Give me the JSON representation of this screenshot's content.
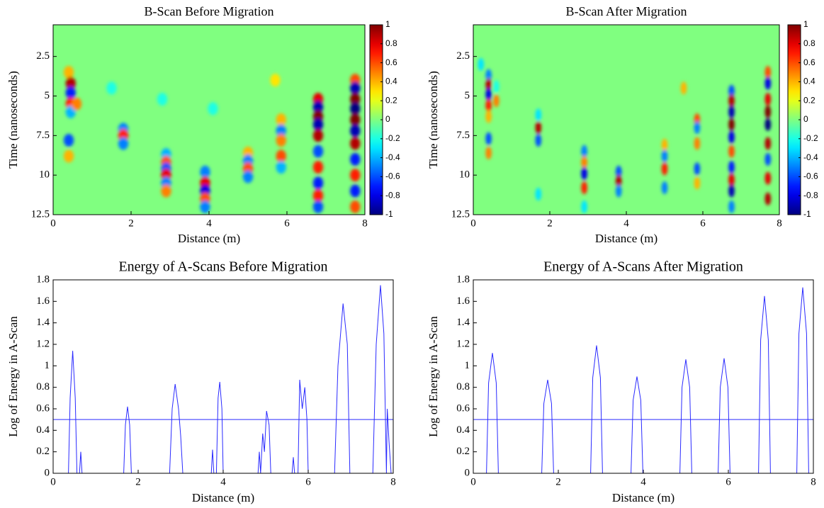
{
  "chart_data": [
    {
      "type": "heatmap",
      "title": "B-Scan Before Migration",
      "xlabel": "Distance (m)",
      "ylabel": "Time (nanoseconds)",
      "xlim": [
        0,
        8
      ],
      "xticks": [
        0,
        2,
        4,
        6,
        8
      ],
      "ylim": [
        0.5,
        12.5
      ],
      "yticks": [
        2.5,
        5,
        7.5,
        10,
        12.5
      ],
      "y_reversed": true,
      "colormap": "jet",
      "clim": [
        -1,
        1
      ],
      "cticks": [
        -1,
        -0.8,
        -0.6,
        -0.4,
        -0.2,
        0,
        0.2,
        0.4,
        0.6,
        0.8,
        1
      ],
      "x": [
        0.4,
        0.45,
        0.45,
        0.45,
        0.45,
        0.6,
        0.4,
        0.4,
        1.8,
        1.8,
        1.8,
        2.9,
        2.9,
        2.9,
        2.9,
        2.9,
        2.9,
        3.9,
        3.9,
        3.9,
        3.9,
        3.9,
        5.0,
        5.0,
        5.0,
        5.0,
        5.85,
        5.85,
        5.85,
        5.85,
        5.85,
        6.8,
        6.8,
        6.8,
        6.8,
        6.8,
        6.8,
        6.8,
        6.8,
        6.8,
        6.8,
        7.75,
        7.75,
        7.75,
        7.75,
        7.75,
        7.75,
        7.75,
        7.75,
        7.75,
        7.75,
        7.75,
        1.5,
        2.8,
        4.1,
        5.7
      ],
      "y": [
        3.5,
        4.2,
        4.8,
        5.5,
        6.0,
        5.5,
        7.8,
        8.8,
        7.1,
        7.5,
        8.0,
        8.7,
        9.2,
        9.6,
        10.0,
        10.5,
        11.0,
        9.8,
        10.5,
        11.0,
        11.5,
        12.0,
        8.6,
        9.1,
        9.6,
        10.1,
        6.5,
        7.2,
        7.8,
        8.8,
        9.5,
        5.2,
        5.7,
        6.3,
        6.8,
        7.5,
        8.5,
        9.5,
        10.5,
        11.3,
        12.0,
        4.0,
        4.5,
        5.2,
        5.8,
        6.5,
        7.2,
        8.0,
        9.0,
        10.0,
        11.0,
        12.0,
        4.5,
        5.2,
        5.8,
        4.0
      ],
      "values": [
        0.4,
        0.9,
        -0.7,
        0.7,
        -0.4,
        0.5,
        -0.6,
        0.4,
        -0.5,
        0.7,
        -0.5,
        -0.4,
        0.6,
        -0.6,
        0.8,
        -0.5,
        0.5,
        -0.5,
        0.8,
        -0.8,
        0.6,
        -0.5,
        0.4,
        -0.5,
        0.6,
        -0.5,
        0.4,
        -0.5,
        0.5,
        0.6,
        -0.4,
        0.8,
        -0.9,
        1,
        -0.9,
        0.9,
        -0.6,
        0.7,
        -0.7,
        0.7,
        -0.6,
        0.6,
        -0.9,
        1,
        -1,
        1,
        -0.9,
        0.9,
        -0.7,
        0.7,
        -0.7,
        0.6,
        -0.2,
        -0.2,
        -0.2,
        0.3
      ]
    },
    {
      "type": "heatmap",
      "title": "B-Scan After Migration",
      "xlabel": "Distance (m)",
      "ylabel": "Time (nanoseconds)",
      "xlim": [
        0,
        8
      ],
      "xticks": [
        0,
        2,
        4,
        6,
        8
      ],
      "ylim": [
        0.5,
        12.5
      ],
      "yticks": [
        2.5,
        5,
        7.5,
        10,
        12.5
      ],
      "y_reversed": true,
      "colormap": "jet",
      "clim": [
        -1,
        1
      ],
      "cticks": [
        -1,
        -0.8,
        -0.6,
        -0.4,
        -0.2,
        0,
        0.2,
        0.4,
        0.6,
        0.8,
        1
      ],
      "x": [
        0.4,
        0.4,
        0.4,
        0.4,
        0.4,
        0.4,
        0.4,
        0.6,
        0.2,
        0.6,
        1.7,
        1.7,
        1.7,
        1.7,
        2.9,
        2.9,
        2.9,
        2.9,
        2.9,
        3.8,
        3.8,
        3.8,
        5.0,
        5.0,
        5.0,
        5.0,
        5.85,
        5.85,
        5.85,
        5.85,
        5.85,
        5.5,
        6.75,
        6.75,
        6.75,
        6.75,
        6.75,
        6.75,
        6.75,
        6.75,
        6.75,
        6.75,
        7.7,
        7.7,
        7.7,
        7.7,
        7.7,
        7.7,
        7.7,
        7.7,
        7.7
      ],
      "y": [
        3.7,
        4.3,
        4.9,
        5.6,
        6.3,
        7.7,
        8.6,
        5.3,
        3.0,
        4.4,
        6.2,
        7.0,
        7.8,
        11.2,
        8.5,
        9.2,
        9.9,
        10.8,
        12.0,
        9.8,
        10.4,
        11.0,
        8.1,
        8.8,
        9.6,
        10.8,
        6.5,
        7.0,
        8.0,
        9.6,
        10.5,
        4.5,
        4.7,
        5.3,
        6.0,
        6.8,
        7.6,
        8.5,
        9.5,
        10.3,
        11.0,
        12.0,
        3.5,
        4.2,
        5.2,
        6.0,
        6.8,
        8.0,
        9.0,
        10.2,
        11.5
      ],
      "values": [
        -0.5,
        0.9,
        -0.8,
        0.7,
        0.4,
        -0.6,
        0.5,
        0.5,
        -0.3,
        -0.2,
        -0.3,
        0.9,
        -0.6,
        -0.3,
        -0.5,
        0.5,
        -0.8,
        0.7,
        -0.3,
        -0.6,
        0.9,
        -0.5,
        0.4,
        -0.5,
        0.7,
        -0.5,
        0.6,
        -0.5,
        0.5,
        -0.6,
        0.4,
        0.4,
        -0.6,
        0.9,
        -0.9,
        1,
        -0.8,
        0.6,
        -0.7,
        0.8,
        -0.9,
        -0.5,
        0.6,
        -0.8,
        0.8,
        1,
        -1,
        0.9,
        -0.6,
        0.8,
        0.9
      ]
    },
    {
      "type": "line",
      "title": "Energy of A-Scans Before Migration",
      "xlabel": "Distance (m)",
      "ylabel": "Log of Energy in A-Scan",
      "xlim": [
        0,
        8
      ],
      "xticks": [
        0,
        2,
        4,
        6,
        8
      ],
      "ylim": [
        0,
        1.8
      ],
      "yticks": [
        0,
        0.2,
        0.4,
        0.6,
        0.8,
        1,
        1.2,
        1.4,
        1.6,
        1.8
      ],
      "color": "#2a2aff",
      "threshold": 0.5,
      "x": [
        0,
        0.36,
        0.4,
        0.46,
        0.52,
        0.56,
        0.62,
        0.65,
        0.68,
        1.66,
        1.7,
        1.75,
        1.8,
        1.84,
        2.74,
        2.8,
        2.87,
        2.95,
        3.0,
        3.05,
        3.72,
        3.75,
        3.78,
        3.84,
        3.88,
        3.92,
        3.97,
        4.0,
        4.82,
        4.85,
        4.88,
        4.93,
        4.97,
        5.02,
        5.08,
        5.12,
        5.62,
        5.65,
        5.68,
        5.76,
        5.8,
        5.86,
        5.92,
        5.97,
        6.0,
        6.62,
        6.7,
        6.82,
        6.92,
        6.98,
        7.52,
        7.6,
        7.7,
        7.78,
        7.84,
        7.86,
        7.9,
        7.95,
        8
      ],
      "values": [
        0,
        0,
        0.7,
        1.14,
        0.7,
        0,
        0,
        0.2,
        0,
        0,
        0.45,
        0.62,
        0.45,
        0,
        0,
        0.6,
        0.83,
        0.6,
        0.35,
        0,
        0,
        0.22,
        0,
        0,
        0.7,
        0.85,
        0.6,
        0,
        0,
        0.2,
        0,
        0.37,
        0.2,
        0.58,
        0.45,
        0,
        0,
        0.15,
        0,
        0,
        0.87,
        0.6,
        0.8,
        0.5,
        0,
        0,
        1.0,
        1.58,
        1.2,
        0,
        0,
        1.2,
        1.75,
        1.3,
        0,
        0.6,
        0.3,
        0,
        0
      ]
    },
    {
      "type": "line",
      "title": "Energy of A-Scans After Migration",
      "xlabel": "Distance (m)",
      "ylabel": "Log of Energy in A-Scan",
      "xlim": [
        0,
        8
      ],
      "xticks": [
        0,
        2,
        4,
        6,
        8
      ],
      "ylim": [
        0,
        1.8
      ],
      "yticks": [
        0,
        0.2,
        0.4,
        0.6,
        0.8,
        1,
        1.2,
        1.4,
        1.6,
        1.8
      ],
      "color": "#2a2aff",
      "threshold": 0.5,
      "x": [
        0,
        0.31,
        0.36,
        0.45,
        0.54,
        0.59,
        1.61,
        1.66,
        1.75,
        1.84,
        1.89,
        2.76,
        2.81,
        2.9,
        2.99,
        3.04,
        3.71,
        3.76,
        3.85,
        3.94,
        3.99,
        4.86,
        4.91,
        5.0,
        5.09,
        5.14,
        5.76,
        5.81,
        5.9,
        5.99,
        6.04,
        6.71,
        6.76,
        6.85,
        6.94,
        6.99,
        7.61,
        7.66,
        7.75,
        7.84,
        7.89,
        8
      ],
      "values": [
        0,
        0,
        0.84,
        1.12,
        0.84,
        0,
        0,
        0.65,
        0.87,
        0.65,
        0,
        0,
        0.89,
        1.19,
        0.89,
        0,
        0,
        0.68,
        0.9,
        0.68,
        0,
        0,
        0.8,
        1.06,
        0.8,
        0,
        0,
        0.8,
        1.07,
        0.8,
        0,
        0,
        1.24,
        1.65,
        1.24,
        0,
        0,
        1.3,
        1.73,
        1.3,
        0,
        0
      ]
    }
  ]
}
